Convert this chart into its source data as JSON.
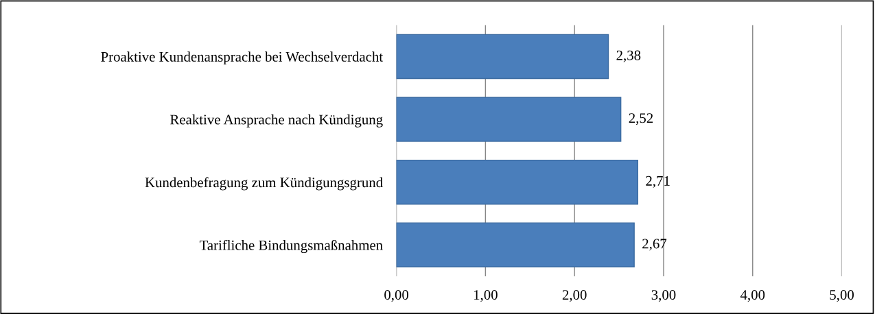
{
  "chart_data": {
    "type": "bar",
    "orientation": "horizontal",
    "categories": [
      "Proaktive Kundenansprache bei Wechselverdacht",
      "Reaktive Ansprache nach Kündigung",
      "Kundenbefragung zum Kündigungsgrund",
      "Tarifliche Bindungsmaßnahmen"
    ],
    "values": [
      2.38,
      2.52,
      2.71,
      2.67
    ],
    "value_labels": [
      "2,38",
      "2,52",
      "2,71",
      "2,67"
    ],
    "color": "#4a7ebb",
    "xlim": [
      0,
      5
    ],
    "xticks": [
      {
        "value": 0,
        "label": "0,00"
      },
      {
        "value": 1,
        "label": "1,00"
      },
      {
        "value": 2,
        "label": "2,00"
      },
      {
        "value": 3,
        "label": "3,00"
      },
      {
        "value": 4,
        "label": "4,00"
      },
      {
        "value": 5,
        "label": "5,00"
      }
    ],
    "grid": "x",
    "legend": false
  }
}
